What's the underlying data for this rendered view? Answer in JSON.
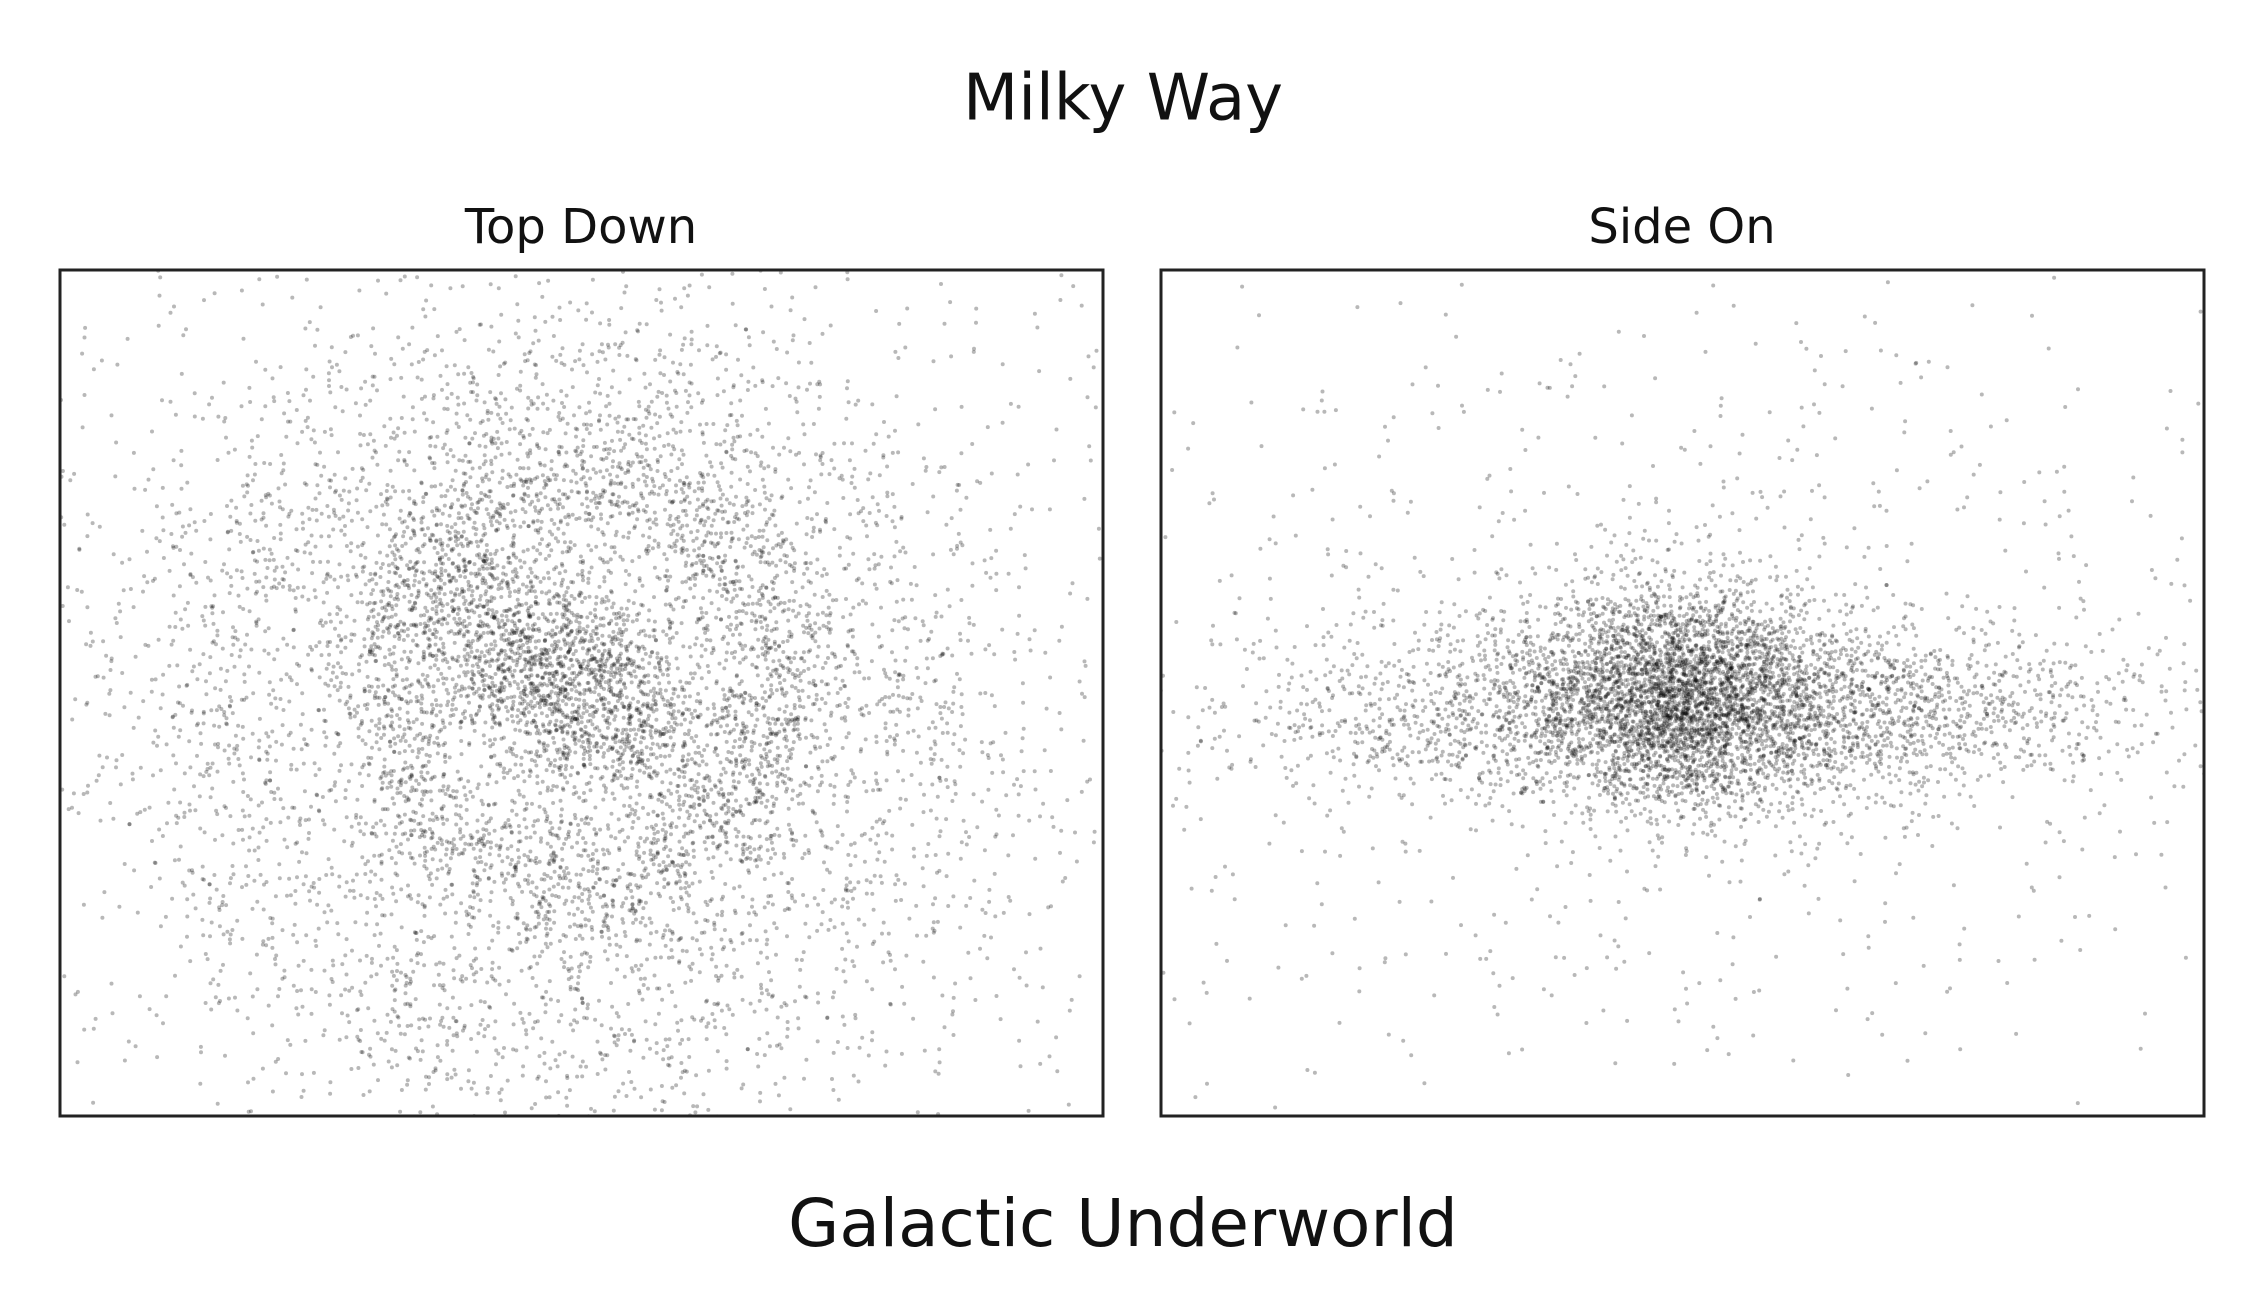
{
  "title": "Milky Way",
  "panels": [
    {
      "title": "Top Down"
    },
    {
      "title": "Side On"
    }
  ],
  "caption": "Galactic Underworld"
}
